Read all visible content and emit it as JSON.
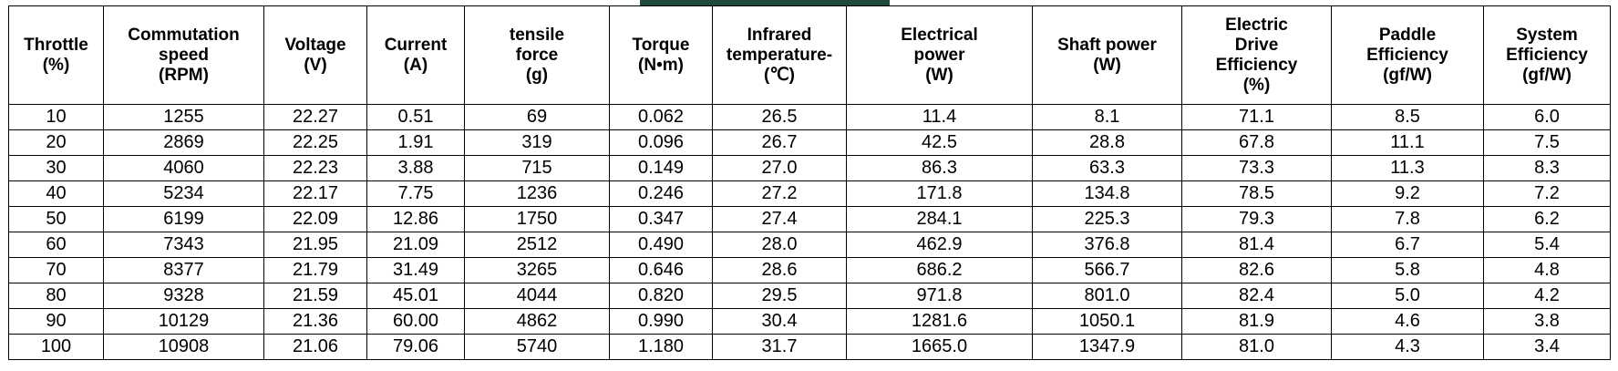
{
  "table": {
    "header": [
      "Throttle\n(%)",
      "Commutation\nspeed\n(RPM)",
      "Voltage\n(V)",
      "Current\n(A)",
      "tensile\nforce\n(g)",
      "Torque\n(N•m)",
      "Infrared\ntemperature-\n(℃)",
      "Electrical\npower\n(W)",
      "Shaft power\n(W)",
      "Electric\nDrive\nEfficiency\n(%)",
      "Paddle\nEfficiency\n(gf/W)",
      "System\nEfficiency\n(gf/W)"
    ],
    "rows": [
      [
        "10",
        "1255",
        "22.27",
        "0.51",
        "69",
        "0.062",
        "26.5",
        "11.4",
        "8.1",
        "71.1",
        "8.5",
        "6.0"
      ],
      [
        "20",
        "2869",
        "22.25",
        "1.91",
        "319",
        "0.096",
        "26.7",
        "42.5",
        "28.8",
        "67.8",
        "11.1",
        "7.5"
      ],
      [
        "30",
        "4060",
        "22.23",
        "3.88",
        "715",
        "0.149",
        "27.0",
        "86.3",
        "63.3",
        "73.3",
        "11.3",
        "8.3"
      ],
      [
        "40",
        "5234",
        "22.17",
        "7.75",
        "1236",
        "0.246",
        "27.2",
        "171.8",
        "134.8",
        "78.5",
        "9.2",
        "7.2"
      ],
      [
        "50",
        "6199",
        "22.09",
        "12.86",
        "1750",
        "0.347",
        "27.4",
        "284.1",
        "225.3",
        "79.3",
        "7.8",
        "6.2"
      ],
      [
        "60",
        "7343",
        "21.95",
        "21.09",
        "2512",
        "0.490",
        "28.0",
        "462.9",
        "376.8",
        "81.4",
        "6.7",
        "5.4"
      ],
      [
        "70",
        "8377",
        "21.79",
        "31.49",
        "3265",
        "0.646",
        "28.6",
        "686.2",
        "566.7",
        "82.6",
        "5.8",
        "4.8"
      ],
      [
        "80",
        "9328",
        "21.59",
        "45.01",
        "4044",
        "0.820",
        "29.5",
        "971.8",
        "801.0",
        "82.4",
        "5.0",
        "4.2"
      ],
      [
        "90",
        "10129",
        "21.36",
        "60.00",
        "4862",
        "0.990",
        "30.4",
        "1281.6",
        "1050.1",
        "81.9",
        "4.6",
        "3.8"
      ],
      [
        "100",
        "10908",
        "21.06",
        "79.06",
        "5740",
        "1.180",
        "31.7",
        "1665.0",
        "1347.9",
        "81.0",
        "4.3",
        "3.4"
      ]
    ]
  }
}
